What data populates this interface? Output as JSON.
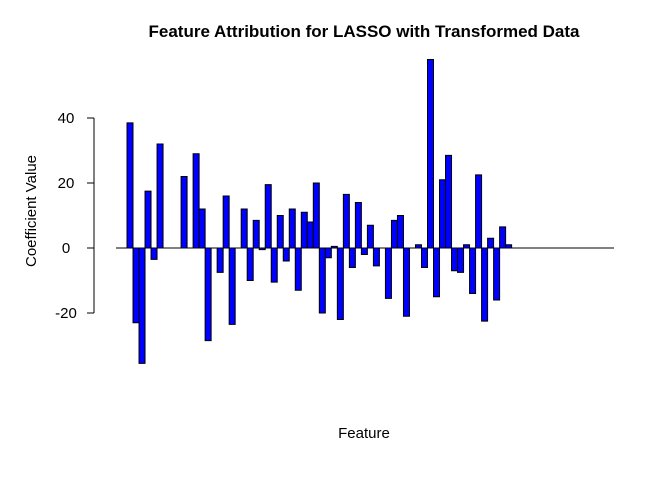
{
  "chart_data": {
    "type": "bar",
    "title": "Feature Attribution for LASSO with Transformed Data",
    "xlabel": "Feature",
    "ylabel": "Coefficient Value",
    "ylim": [
      -38,
      58
    ],
    "yticks": [
      -20,
      0,
      20,
      40
    ],
    "bar_color": "#0000ff",
    "bar_edge_color": "#000000",
    "grid": false,
    "legend": "none",
    "values": [
      38.5,
      -23,
      -35.5,
      17.5,
      -3.5,
      32,
      0,
      0,
      0,
      22,
      0,
      29,
      12,
      -28.5,
      0,
      -7.5,
      16,
      -23.5,
      0,
      12,
      -10,
      8.5,
      -0.5,
      19.5,
      -10.5,
      10,
      -4,
      12,
      -13,
      11,
      8,
      20,
      -20,
      -3,
      0.5,
      -22,
      16.5,
      -6,
      14,
      -2,
      7,
      -5.5,
      0,
      -15.5,
      8.5,
      10,
      -21,
      0,
      1,
      -6,
      58,
      -15,
      21,
      28.5,
      -7,
      -7.5,
      1,
      -14,
      22.5,
      -22.5,
      3,
      -16,
      6.5,
      1
    ]
  }
}
